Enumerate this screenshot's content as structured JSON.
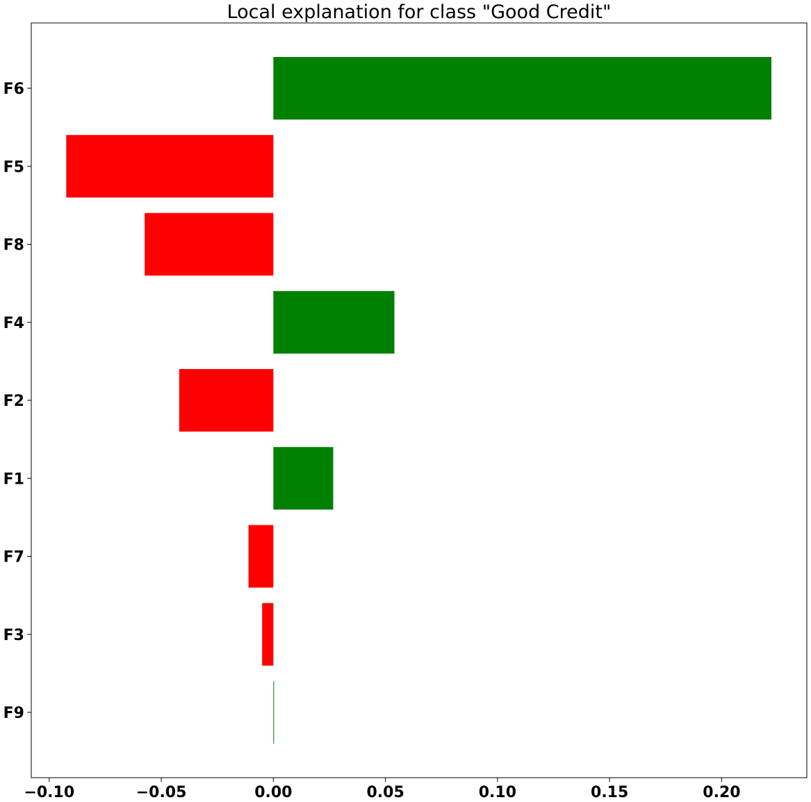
{
  "chart_data": {
    "type": "bar",
    "orientation": "horizontal",
    "title": "Local explanation for class \"Good Credit\"",
    "xlabel": "",
    "ylabel": "",
    "categories": [
      "F6",
      "F5",
      "F8",
      "F4",
      "F2",
      "F1",
      "F7",
      "F3",
      "F9"
    ],
    "values": [
      0.2222,
      -0.0924,
      -0.0574,
      0.054,
      -0.042,
      0.0267,
      -0.0111,
      -0.005,
      0.0003
    ],
    "xlim": [
      -0.108,
      0.238
    ],
    "xticks": [
      -0.1,
      -0.05,
      0.0,
      0.05,
      0.1,
      0.15,
      0.2
    ],
    "xtick_labels": [
      "−0.10",
      "−0.05",
      "0.00",
      "0.05",
      "0.10",
      "0.15",
      "0.20"
    ],
    "grid": false,
    "colors": {
      "positive": "#008000",
      "negative": "#ff0000"
    }
  }
}
